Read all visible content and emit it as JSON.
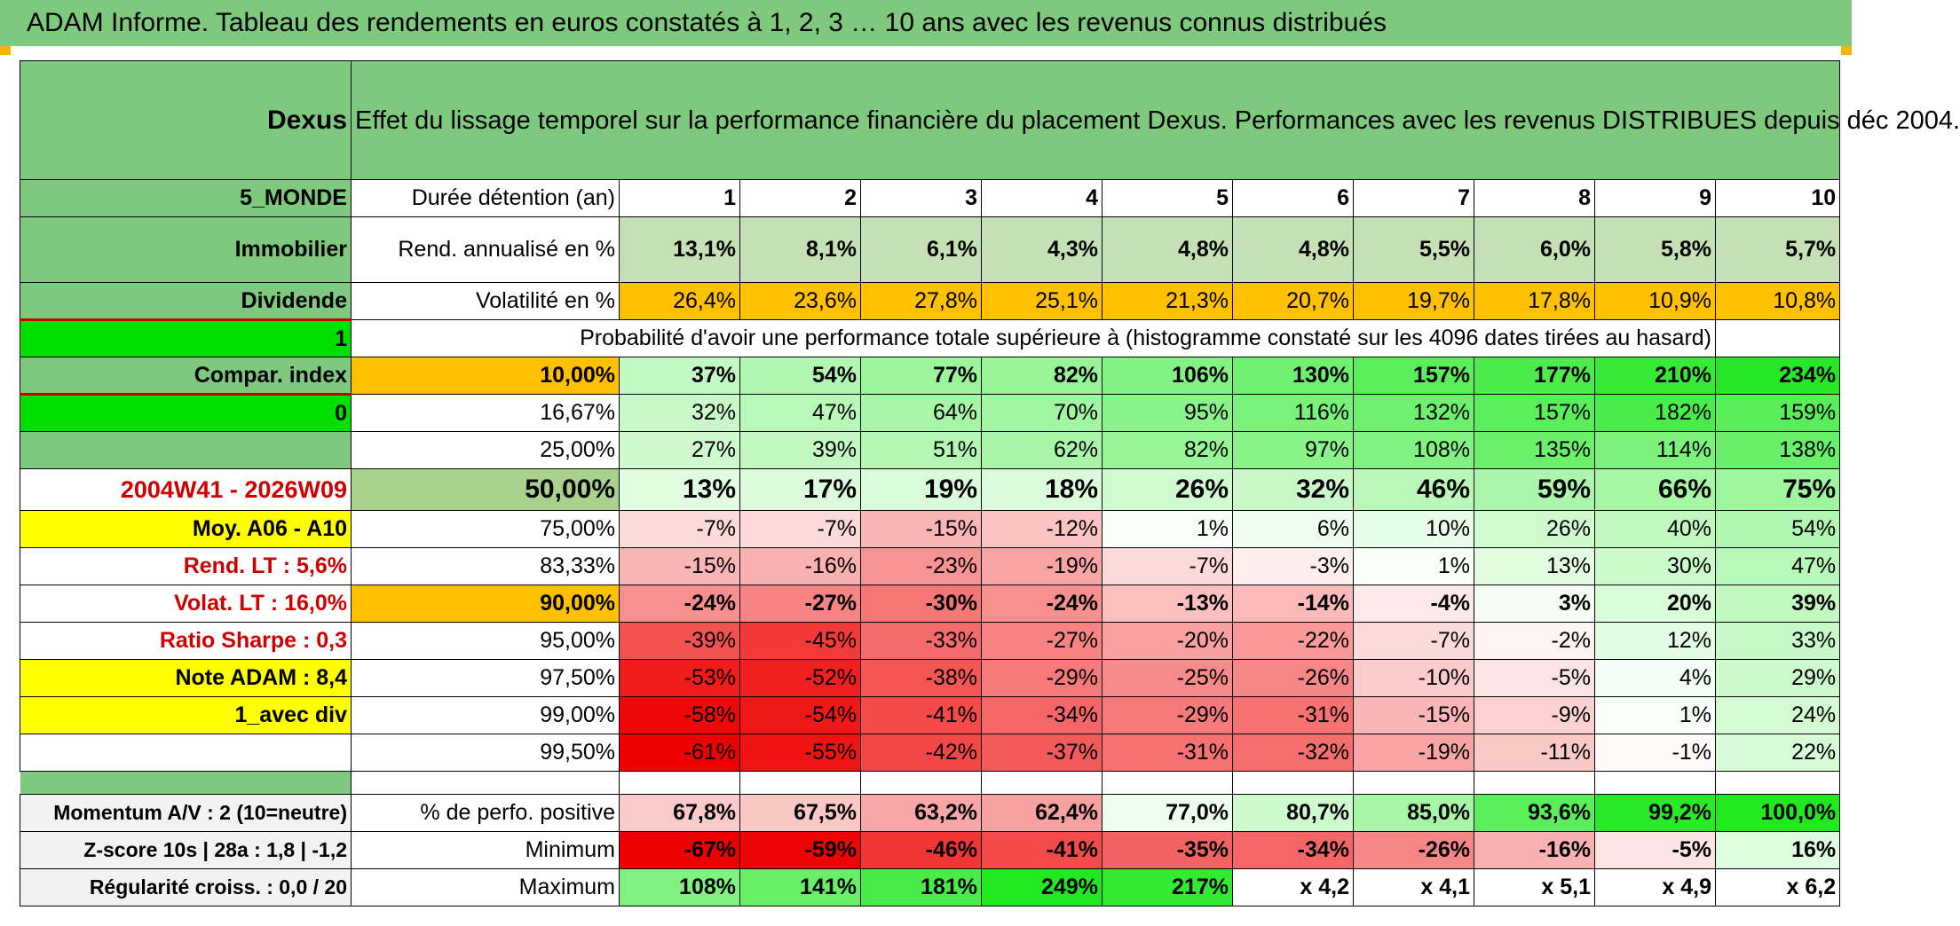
{
  "title": "ADAM Informe. Tableau des rendements en euros constatés à 1, 2, 3 … 10 ans avec les revenus connus distribués",
  "colors": {
    "header_green": "#7fc97f",
    "bright_green": "#00e000",
    "yellow": "#ffff00",
    "orange": "#ffc000",
    "pale_green": "#c5e0b4",
    "red_text": "#d00000"
  },
  "fund": "Dexus",
  "header_text": "Effet du lissage temporel sur la performance financière du placement Dexus. Performances avec les revenus DISTRIBUES depuis déc 2004.",
  "left_labels": {
    "zone": "5_MONDE",
    "category": "Immobilier",
    "distribution": "Dividende",
    "flag1": "1",
    "compar_index": "Compar. index",
    "flag0": "0",
    "period": "2004W41 - 2026W09",
    "moy": "Moy. A06 - A10",
    "rend_lt": "Rend. LT :   5,6%",
    "volat_lt": "Volat. LT :   16,0%",
    "sharpe": "Ratio Sharpe :   0,3",
    "note": "Note ADAM : 8,4",
    "div_mode": "1_avec div",
    "momentum": "Momentum A/V : 2 (10=neutre)",
    "zscore": "Z-score 10s | 28a : 1,8 | -1,2",
    "regularite": "Régularité croiss. : 0,0 / 20"
  },
  "duration_label": "Durée détention (an)",
  "years": [
    "1",
    "2",
    "3",
    "4",
    "5",
    "6",
    "7",
    "8",
    "9",
    "10"
  ],
  "rend_label": "Rend. annualisé en %",
  "rend": [
    "13,1%",
    "8,1%",
    "6,1%",
    "4,3%",
    "4,8%",
    "4,8%",
    "5,5%",
    "6,0%",
    "5,8%",
    "5,7%"
  ],
  "vol_label": "Volatilité en %",
  "vol": [
    "26,4%",
    "23,6%",
    "27,8%",
    "25,1%",
    "21,3%",
    "20,7%",
    "19,7%",
    "17,8%",
    "10,9%",
    "10,8%"
  ],
  "prob_label": "Probabilité d'avoir une performance totale supérieure à (histogramme constaté sur les 4096 dates tirées au hasard)",
  "prob_rows": [
    {
      "p": "10,00%",
      "v": [
        "37%",
        "54%",
        "77%",
        "82%",
        "106%",
        "130%",
        "157%",
        "177%",
        "210%",
        "234%"
      ]
    },
    {
      "p": "16,67%",
      "v": [
        "32%",
        "47%",
        "64%",
        "70%",
        "95%",
        "116%",
        "132%",
        "157%",
        "182%",
        "159%"
      ]
    },
    {
      "p": "25,00%",
      "v": [
        "27%",
        "39%",
        "51%",
        "62%",
        "82%",
        "97%",
        "108%",
        "135%",
        "114%",
        "138%"
      ]
    },
    {
      "p": "50,00%",
      "v": [
        "13%",
        "17%",
        "19%",
        "18%",
        "26%",
        "32%",
        "46%",
        "59%",
        "66%",
        "75%"
      ]
    },
    {
      "p": "75,00%",
      "v": [
        "-7%",
        "-7%",
        "-15%",
        "-12%",
        "1%",
        "6%",
        "10%",
        "26%",
        "40%",
        "54%"
      ]
    },
    {
      "p": "83,33%",
      "v": [
        "-15%",
        "-16%",
        "-23%",
        "-19%",
        "-7%",
        "-3%",
        "1%",
        "13%",
        "30%",
        "47%"
      ]
    },
    {
      "p": "90,00%",
      "v": [
        "-24%",
        "-27%",
        "-30%",
        "-24%",
        "-13%",
        "-14%",
        "-4%",
        "3%",
        "20%",
        "39%"
      ]
    },
    {
      "p": "95,00%",
      "v": [
        "-39%",
        "-45%",
        "-33%",
        "-27%",
        "-20%",
        "-22%",
        "-7%",
        "-2%",
        "12%",
        "33%"
      ]
    },
    {
      "p": "97,50%",
      "v": [
        "-53%",
        "-52%",
        "-38%",
        "-29%",
        "-25%",
        "-26%",
        "-10%",
        "-5%",
        "4%",
        "29%"
      ]
    },
    {
      "p": "99,00%",
      "v": [
        "-58%",
        "-54%",
        "-41%",
        "-34%",
        "-29%",
        "-31%",
        "-15%",
        "-9%",
        "1%",
        "24%"
      ]
    },
    {
      "p": "99,50%",
      "v": [
        "-61%",
        "-55%",
        "-42%",
        "-37%",
        "-31%",
        "-32%",
        "-19%",
        "-11%",
        "-1%",
        "22%"
      ]
    }
  ],
  "pos_label": "% de perfo. positive",
  "pos": [
    "67,8%",
    "67,5%",
    "63,2%",
    "62,4%",
    "77,0%",
    "80,7%",
    "85,0%",
    "93,6%",
    "99,2%",
    "100,0%"
  ],
  "min_label": "Minimum",
  "min": [
    "-67%",
    "-59%",
    "-46%",
    "-41%",
    "-35%",
    "-34%",
    "-26%",
    "-16%",
    "-5%",
    "16%"
  ],
  "max_label": "Maximum",
  "max": [
    "108%",
    "141%",
    "181%",
    "249%",
    "217%",
    "x 4,2",
    "x 4,1",
    "x 5,1",
    "x 4,9",
    "x 6,2"
  ]
}
